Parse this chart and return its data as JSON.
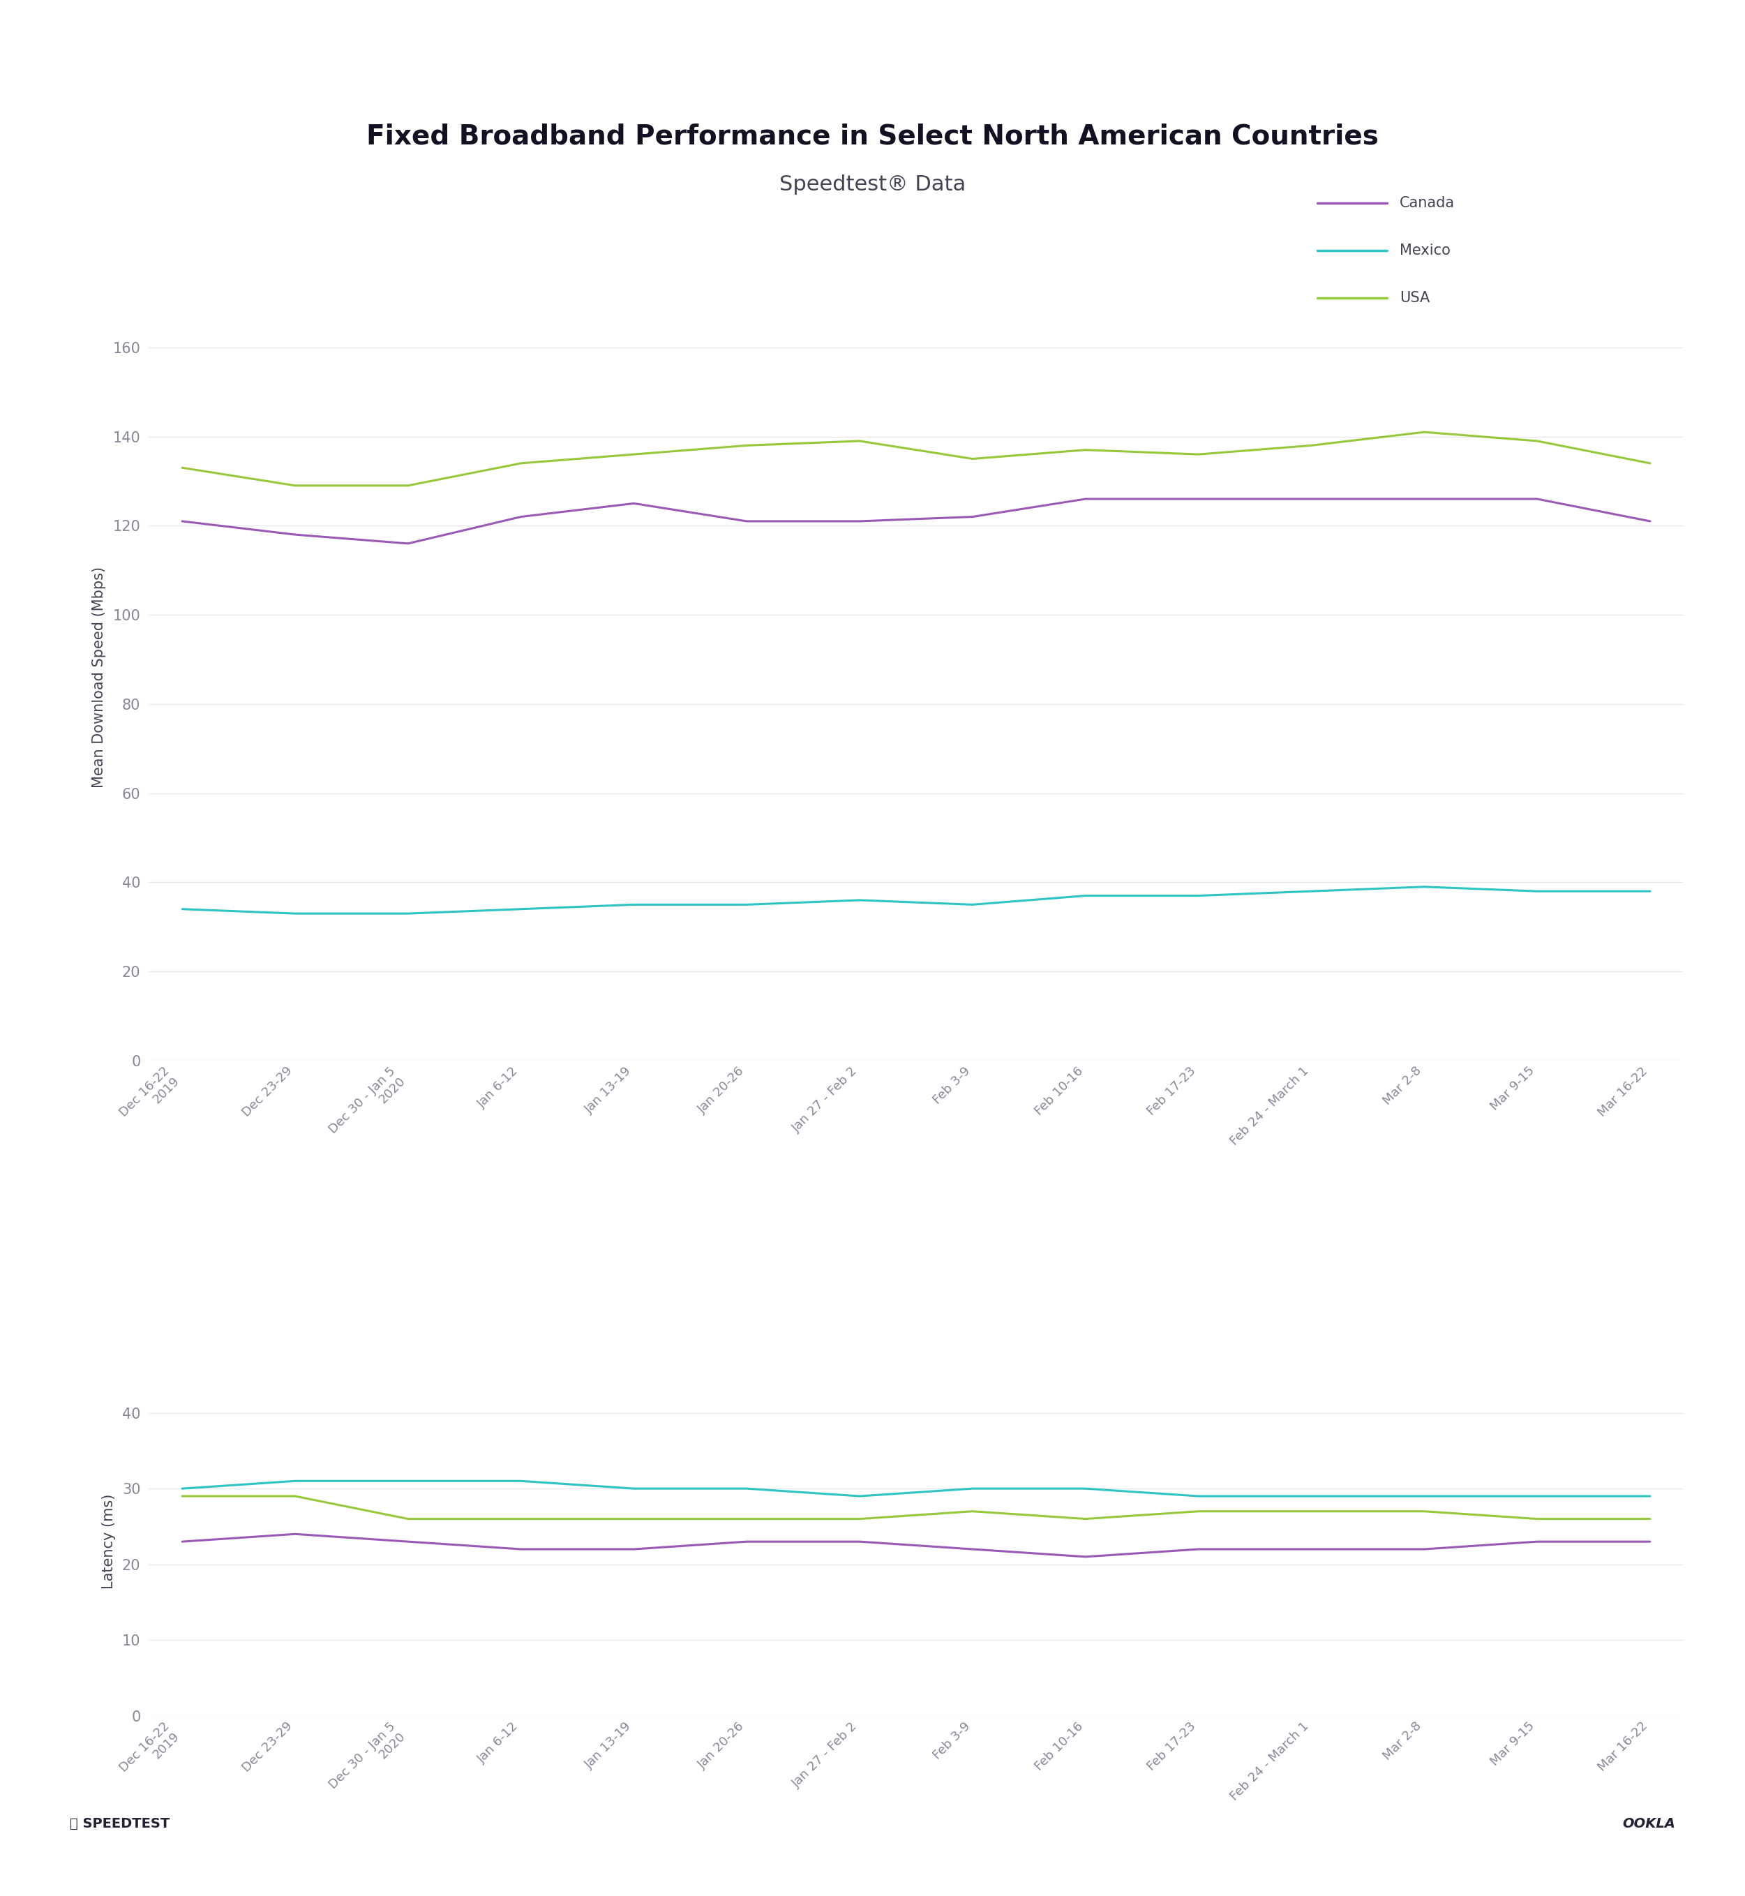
{
  "title": "Fixed Broadband Performance in Select North American Countries",
  "subtitle": "Speedtest® Data",
  "x_labels": [
    "Dec 16-22\n2019",
    "Dec 23-29",
    "Dec 30 - Jan 5\n2020",
    "Jan 6-12",
    "Jan 13-19",
    "Jan 20-26",
    "Jan 27 - Feb 2",
    "Feb 3-9",
    "Feb 10-16",
    "Feb 17-23",
    "Feb 24 - March 1",
    "Mar 2-8",
    "Mar 9-15",
    "Mar 16-22"
  ],
  "canada_download": [
    121,
    118,
    116,
    122,
    125,
    121,
    121,
    122,
    126,
    126,
    126,
    126,
    126,
    121
  ],
  "mexico_download": [
    34,
    33,
    33,
    34,
    35,
    35,
    36,
    35,
    37,
    37,
    38,
    39,
    38,
    38
  ],
  "usa_download": [
    133,
    129,
    129,
    134,
    136,
    138,
    139,
    135,
    137,
    136,
    138,
    141,
    139,
    134
  ],
  "canada_latency": [
    23,
    24,
    23,
    22,
    22,
    23,
    23,
    22,
    21,
    22,
    22,
    22,
    23,
    23
  ],
  "mexico_latency": [
    30,
    31,
    31,
    31,
    30,
    30,
    29,
    30,
    30,
    29,
    29,
    29,
    29,
    29
  ],
  "usa_latency": [
    29,
    29,
    26,
    26,
    26,
    26,
    26,
    27,
    26,
    27,
    27,
    27,
    26,
    26
  ],
  "colors": {
    "canada": "#9b59b6",
    "mexico": "#2ec4c4",
    "usa": "#96c83a"
  },
  "download_yticks": [
    0,
    20,
    40,
    60,
    80,
    100,
    120,
    140,
    160
  ],
  "latency_yticks": [
    0,
    10,
    20,
    30,
    40
  ],
  "ylabel_download": "Mean Download Speed (Mbps)",
  "ylabel_latency": "Latency (ms)",
  "background_color": "#ffffff",
  "grid_color": "#e8e8ee",
  "tick_color": "#888899",
  "title_color": "#111122",
  "subtitle_color": "#444455",
  "legend_labels": [
    "Canada",
    "Mexico",
    "USA"
  ],
  "footer_left": "ⓘ SPEEDTEST",
  "footer_right": "OOKLA",
  "linewidth": 2.2
}
